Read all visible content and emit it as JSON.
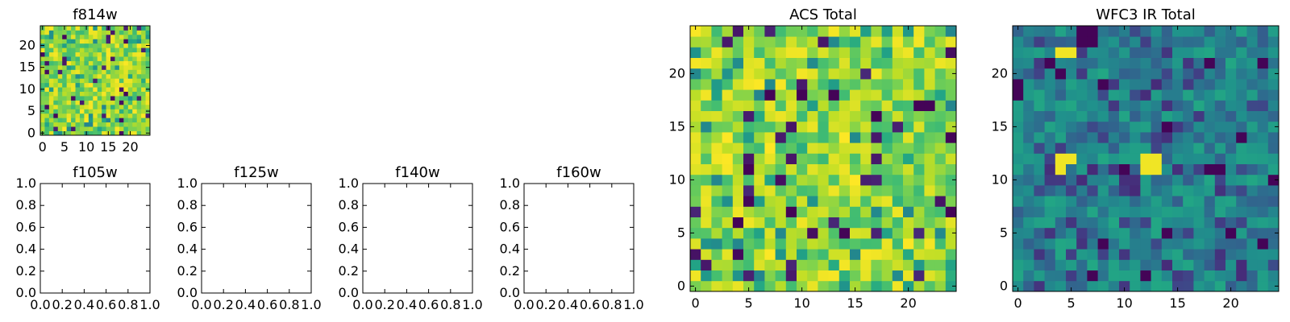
{
  "chart_data": [
    {
      "type": "heatmap",
      "title": "f814w",
      "grid_size": 25,
      "colormap": "viridis",
      "xlim": [
        -0.5,
        24.5
      ],
      "ylim": [
        -0.5,
        24.5
      ],
      "xticks": [
        0,
        5,
        10,
        15,
        20
      ],
      "yticks": [
        0,
        5,
        10,
        15,
        20
      ],
      "value_range": [
        0,
        1
      ],
      "seed": 11,
      "pattern": "noise_high"
    },
    {
      "type": "empty",
      "title": "f105w",
      "xlim": [
        0,
        1
      ],
      "ylim": [
        0,
        1
      ],
      "xtick_labels": [
        "0.0",
        "0.2",
        "0.4",
        "0.6",
        "0.8",
        "1.0"
      ],
      "ytick_labels": [
        "0.0",
        "0.2",
        "0.4",
        "0.6",
        "0.8",
        "1.0"
      ]
    },
    {
      "type": "empty",
      "title": "f125w",
      "xlim": [
        0,
        1
      ],
      "ylim": [
        0,
        1
      ],
      "xtick_labels": [
        "0.0",
        "0.2",
        "0.4",
        "0.6",
        "0.8",
        "1.0"
      ],
      "ytick_labels": [
        "0.0",
        "0.2",
        "0.4",
        "0.6",
        "0.8",
        "1.0"
      ]
    },
    {
      "type": "empty",
      "title": "f140w",
      "xlim": [
        0,
        1
      ],
      "ylim": [
        0,
        1
      ],
      "xtick_labels": [
        "0.0",
        "0.2",
        "0.4",
        "0.6",
        "0.8",
        "1.0"
      ],
      "ytick_labels": [
        "0.0",
        "0.2",
        "0.4",
        "0.6",
        "0.8",
        "1.0"
      ]
    },
    {
      "type": "empty",
      "title": "f160w",
      "xlim": [
        0,
        1
      ],
      "ylim": [
        0,
        1
      ],
      "xtick_labels": [
        "0.0",
        "0.2",
        "0.4",
        "0.6",
        "0.8",
        "1.0"
      ],
      "ytick_labels": [
        "0.0",
        "0.2",
        "0.4",
        "0.6",
        "0.8",
        "1.0"
      ]
    },
    {
      "type": "heatmap",
      "title": "ACS Total",
      "grid_size": 25,
      "colormap": "viridis",
      "xlim": [
        -0.5,
        24.5
      ],
      "ylim": [
        -0.5,
        24.5
      ],
      "xticks": [
        0,
        5,
        10,
        15,
        20
      ],
      "yticks": [
        0,
        5,
        10,
        15,
        20
      ],
      "value_range": [
        0,
        1
      ],
      "seed": 23,
      "pattern": "noise_high",
      "low_cells": [
        [
          7,
          18
        ],
        [
          10,
          18
        ],
        [
          13,
          18
        ],
        [
          17,
          16
        ],
        [
          21,
          17
        ],
        [
          22,
          17
        ],
        [
          24,
          14
        ],
        [
          5,
          11
        ],
        [
          9,
          7
        ],
        [
          14,
          5
        ],
        [
          4,
          6
        ],
        [
          24,
          7
        ]
      ]
    },
    {
      "type": "heatmap",
      "title": "WFC3 IR Total",
      "grid_size": 25,
      "colormap": "viridis",
      "xlim": [
        -0.5,
        24.5
      ],
      "ylim": [
        -0.5,
        24.5
      ],
      "xticks": [
        0,
        5,
        10,
        15,
        20
      ],
      "yticks": [
        0,
        5,
        10,
        15,
        20
      ],
      "value_range": [
        0,
        1
      ],
      "seed": 37,
      "pattern": "noise_mid",
      "low_cells": [
        [
          6,
          24
        ],
        [
          7,
          24
        ],
        [
          6,
          23
        ],
        [
          7,
          23
        ],
        [
          3,
          21
        ],
        [
          18,
          21
        ],
        [
          23,
          21
        ],
        [
          0,
          19
        ],
        [
          0,
          18
        ],
        [
          4,
          20
        ],
        [
          8,
          19
        ],
        [
          14,
          15
        ],
        [
          21,
          14
        ],
        [
          10,
          11
        ],
        [
          18,
          11
        ],
        [
          19,
          11
        ],
        [
          24,
          10
        ],
        [
          8,
          4
        ],
        [
          14,
          5
        ],
        [
          20,
          5
        ],
        [
          23,
          4
        ],
        [
          7,
          1
        ],
        [
          12,
          1
        ]
      ],
      "high_cells": [
        [
          4,
          22
        ],
        [
          5,
          22
        ],
        [
          4,
          12
        ],
        [
          5,
          12
        ],
        [
          4,
          11
        ],
        [
          12,
          12
        ],
        [
          13,
          12
        ],
        [
          12,
          11
        ],
        [
          13,
          11
        ]
      ]
    }
  ]
}
